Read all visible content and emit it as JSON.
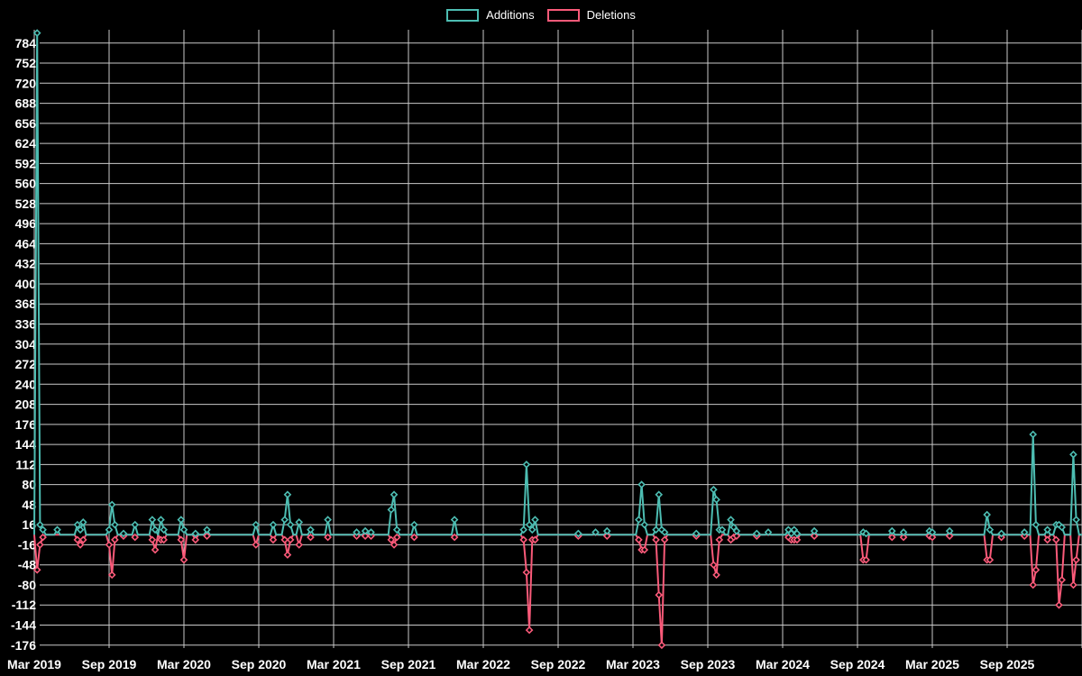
{
  "colors": {
    "background": "#000000",
    "grid": "#c9c9c9",
    "tick_text": "#ffffff",
    "additions": "#4dbdb2",
    "deletions": "#fa5a79"
  },
  "legend": {
    "items": [
      {
        "label": "Additions",
        "color": "#4dbdb2"
      },
      {
        "label": "Deletions",
        "color": "#fa5a79"
      }
    ]
  },
  "chart_data": {
    "type": "line",
    "title": "",
    "xlabel": "",
    "ylabel": "",
    "legend_position": "top-center",
    "grid": true,
    "marker": "diamond",
    "baseline": 0,
    "x_axis": {
      "unit": "weeks since Mar 2019",
      "labels": [
        "Mar 2019",
        "Sep 2019",
        "Mar 2020",
        "Sep 2020",
        "Mar 2021",
        "Sep 2021",
        "Mar 2022",
        "Sep 2022",
        "Mar 2023",
        "Sep 2023",
        "Mar 2024",
        "Sep 2024",
        "Mar 2025",
        "Sep 2025"
      ],
      "label_interval_weeks": 26,
      "weeks_total": 364
    },
    "y_axis": {
      "min": -176,
      "max": 784,
      "step": 32,
      "ticks": [
        784,
        752,
        720,
        688,
        656,
        624,
        592,
        560,
        528,
        496,
        464,
        432,
        400,
        368,
        336,
        304,
        272,
        240,
        208,
        176,
        144,
        112,
        80,
        48,
        16,
        -16,
        -48,
        -80,
        -112,
        -144,
        -176
      ]
    },
    "series": [
      {
        "name": "Additions",
        "color": "#4dbdb2",
        "key": 1
      },
      {
        "name": "Deletions",
        "color": "#fa5a79",
        "key": 2
      }
    ],
    "note": "points = [week, additions, deletions]; all unlisted weeks are 0 for both series",
    "points": [
      [
        1,
        800,
        -56
      ],
      [
        2,
        16,
        -16
      ],
      [
        3,
        8,
        -4
      ],
      [
        8,
        8,
        0
      ],
      [
        15,
        16,
        -8
      ],
      [
        16,
        8,
        -16
      ],
      [
        17,
        20,
        -8
      ],
      [
        26,
        8,
        -16
      ],
      [
        27,
        48,
        -64
      ],
      [
        28,
        16,
        -8
      ],
      [
        31,
        2,
        -2
      ],
      [
        35,
        16,
        -4
      ],
      [
        41,
        24,
        -8
      ],
      [
        42,
        8,
        -24
      ],
      [
        44,
        24,
        -8
      ],
      [
        45,
        8,
        -8
      ],
      [
        51,
        24,
        -8
      ],
      [
        52,
        8,
        -40
      ],
      [
        56,
        2,
        -8
      ],
      [
        60,
        8,
        -2
      ],
      [
        77,
        16,
        -16
      ],
      [
        83,
        16,
        -8
      ],
      [
        87,
        24,
        -8
      ],
      [
        88,
        64,
        -32
      ],
      [
        89,
        16,
        -8
      ],
      [
        92,
        20,
        -16
      ],
      [
        96,
        8,
        -4
      ],
      [
        102,
        24,
        -4
      ],
      [
        112,
        4,
        -2
      ],
      [
        115,
        6,
        -2
      ],
      [
        117,
        4,
        -2
      ],
      [
        124,
        40,
        -8
      ],
      [
        125,
        64,
        -16
      ],
      [
        126,
        8,
        -4
      ],
      [
        132,
        16,
        -4
      ],
      [
        146,
        24,
        -4
      ],
      [
        170,
        8,
        -8
      ],
      [
        171,
        112,
        -60
      ],
      [
        172,
        16,
        -152
      ],
      [
        173,
        8,
        -8
      ],
      [
        174,
        24,
        -8
      ],
      [
        189,
        2,
        -2
      ],
      [
        195,
        4,
        0
      ],
      [
        199,
        6,
        -2
      ],
      [
        210,
        24,
        -8
      ],
      [
        211,
        80,
        -24
      ],
      [
        212,
        16,
        -24
      ],
      [
        216,
        8,
        -8
      ],
      [
        217,
        64,
        -96
      ],
      [
        218,
        8,
        -176
      ],
      [
        219,
        4,
        -8
      ],
      [
        230,
        2,
        -2
      ],
      [
        236,
        72,
        -48
      ],
      [
        237,
        56,
        -64
      ],
      [
        238,
        8,
        -8
      ],
      [
        239,
        8,
        0
      ],
      [
        242,
        24,
        -8
      ],
      [
        243,
        12,
        -4
      ],
      [
        244,
        6,
        -2
      ],
      [
        251,
        2,
        -2
      ],
      [
        255,
        4,
        0
      ],
      [
        262,
        8,
        -4
      ],
      [
        263,
        2,
        -8
      ],
      [
        264,
        8,
        -8
      ],
      [
        265,
        2,
        -8
      ],
      [
        271,
        6,
        -2
      ],
      [
        288,
        4,
        -40
      ],
      [
        289,
        2,
        -40
      ],
      [
        298,
        6,
        -4
      ],
      [
        302,
        4,
        -4
      ],
      [
        311,
        6,
        -2
      ],
      [
        312,
        4,
        -4
      ],
      [
        318,
        6,
        -2
      ],
      [
        331,
        32,
        -40
      ],
      [
        332,
        8,
        -40
      ],
      [
        336,
        2,
        -4
      ],
      [
        344,
        4,
        -2
      ],
      [
        347,
        160,
        -80
      ],
      [
        348,
        16,
        -56
      ],
      [
        352,
        8,
        -8
      ],
      [
        355,
        16,
        -8
      ],
      [
        356,
        16,
        -112
      ],
      [
        357,
        12,
        -72
      ],
      [
        361,
        128,
        -80
      ],
      [
        362,
        24,
        -40
      ]
    ]
  }
}
